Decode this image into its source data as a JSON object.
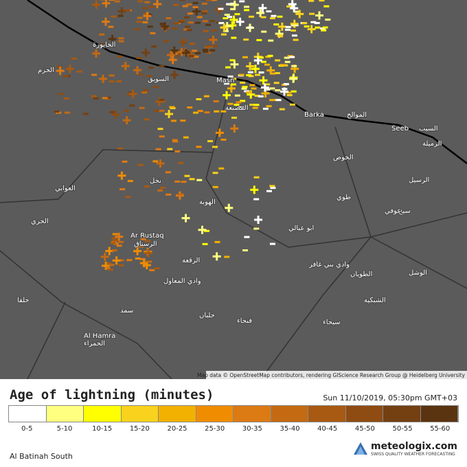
{
  "map": {
    "labels": [
      "Ar Rustaq",
      "الرستاق",
      "Al Hamra",
      "الحمراء",
      "Seeb",
      "السيب",
      "Barka",
      "Masn",
      "الرميلة",
      "الرسيل",
      "الخوض",
      "الموالح",
      "السويق",
      "الخابورة",
      "المصنعة",
      "وادي المعاول",
      "العوابي",
      "نخل",
      "الجزي",
      "طوي",
      "الحزم",
      "الهوبة",
      "سمد",
      "الرقعة",
      "وادي بني غافر",
      "الطويان",
      "ابو عبالي",
      "الشبكية",
      "حلفا",
      "سيح",
      "الوشل",
      "حلبان",
      "فنجاء",
      "سيجاء",
      "عوفي"
    ],
    "attribution": "Map data © OpenStreetMap contributors, rendering GIScience Research Group @ Heidelberg University"
  },
  "legend": {
    "title": "Age of lightning (minutes)",
    "timestamp": "Sun 11/10/2019, 05:30pm GMT+03",
    "items": [
      {
        "label": "0-5",
        "color": "#ffffff"
      },
      {
        "label": "5-10",
        "color": "#ffff80"
      },
      {
        "label": "10-15",
        "color": "#ffff00"
      },
      {
        "label": "15-20",
        "color": "#f8d21c"
      },
      {
        "label": "20-25",
        "color": "#f2b000"
      },
      {
        "label": "25-30",
        "color": "#f08c00"
      },
      {
        "label": "30-35",
        "color": "#dc7a14"
      },
      {
        "label": "35-40",
        "color": "#c46a12"
      },
      {
        "label": "40-45",
        "color": "#a85a12"
      },
      {
        "label": "45-50",
        "color": "#8e4c12"
      },
      {
        "label": "50-55",
        "color": "#744012"
      },
      {
        "label": "55-60",
        "color": "#5a3410"
      }
    ]
  },
  "footer": {
    "region": "Al Batinah South",
    "brand": "meteologix.com",
    "tagline": "SWISS QUALITY WEATHER FORECASTING"
  }
}
